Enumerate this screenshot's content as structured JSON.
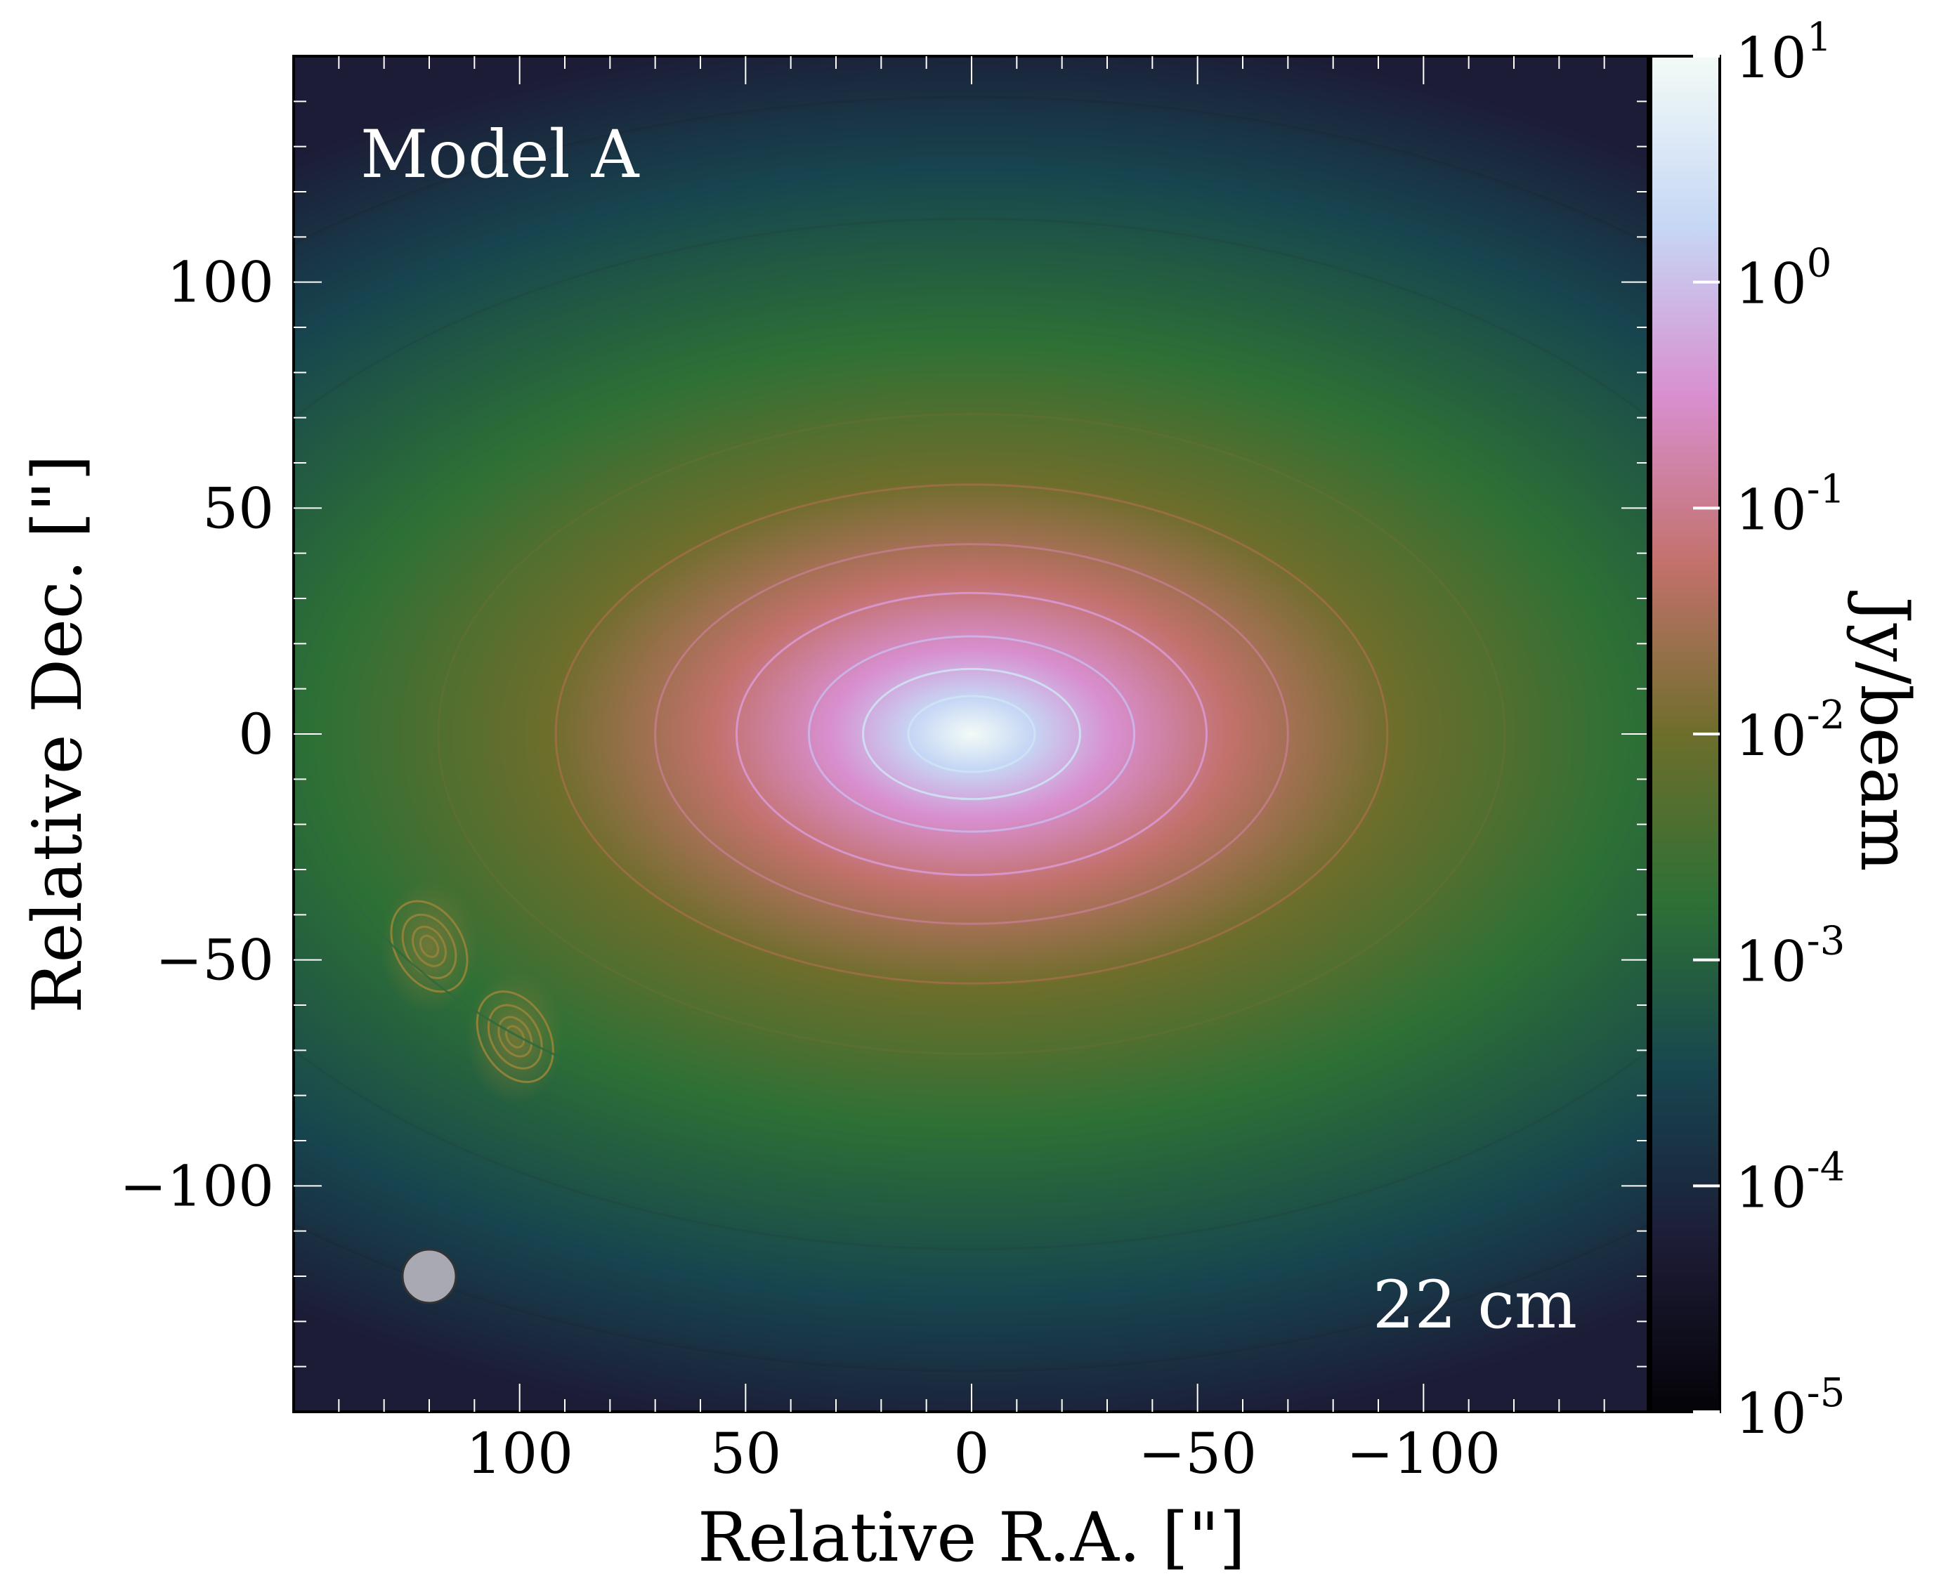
{
  "chart_data": {
    "type": "heatmap",
    "xlabel": "Relative R.A. [\"]",
    "ylabel": "Relative Dec. [\"]",
    "xlim": [
      150,
      -150
    ],
    "ylim": [
      -150,
      150
    ],
    "xticks": [
      100,
      50,
      0,
      -50,
      -100
    ],
    "xtick_labels": [
      "100",
      "50",
      "0",
      "−50",
      "−100"
    ],
    "yticks": [
      100,
      50,
      0,
      -50,
      -100
    ],
    "ytick_labels": [
      "100",
      "50",
      "0",
      "−50",
      "−100"
    ],
    "annotations": {
      "model": "Model A",
      "wavelength": "22 cm"
    },
    "colorbar": {
      "label": "Jy/beam",
      "scale": "log",
      "range": [
        1e-05,
        10
      ],
      "ticks": [
        {
          "value": 10,
          "base": "10",
          "exp": "1"
        },
        {
          "value": 1,
          "base": "10",
          "exp": "0"
        },
        {
          "value": 0.1,
          "base": "10",
          "exp": "-1"
        },
        {
          "value": 0.01,
          "base": "10",
          "exp": "-2"
        },
        {
          "value": 0.001,
          "base": "10",
          "exp": "-3"
        },
        {
          "value": 0.0001,
          "base": "10",
          "exp": "-4"
        },
        {
          "value": 1e-05,
          "base": "10",
          "exp": "-5"
        }
      ],
      "colors": [
        "#050308",
        "#1c1c36",
        "#17454f",
        "#2d7035",
        "#6e6e2b",
        "#c2716b",
        "#d88fd0",
        "#c6d7f5",
        "#f3fbf6"
      ]
    },
    "source": {
      "ra": 0,
      "dec": 0,
      "peak_jy_per_beam": 4,
      "axis_ratio": 0.6,
      "position_angle_deg": 60
    },
    "compact_sources": [
      {
        "ra": 120,
        "dec": -47
      },
      {
        "ra": 101,
        "dec": -67
      }
    ],
    "beam": {
      "ra": 120,
      "dec": -120
    },
    "grid": false
  }
}
